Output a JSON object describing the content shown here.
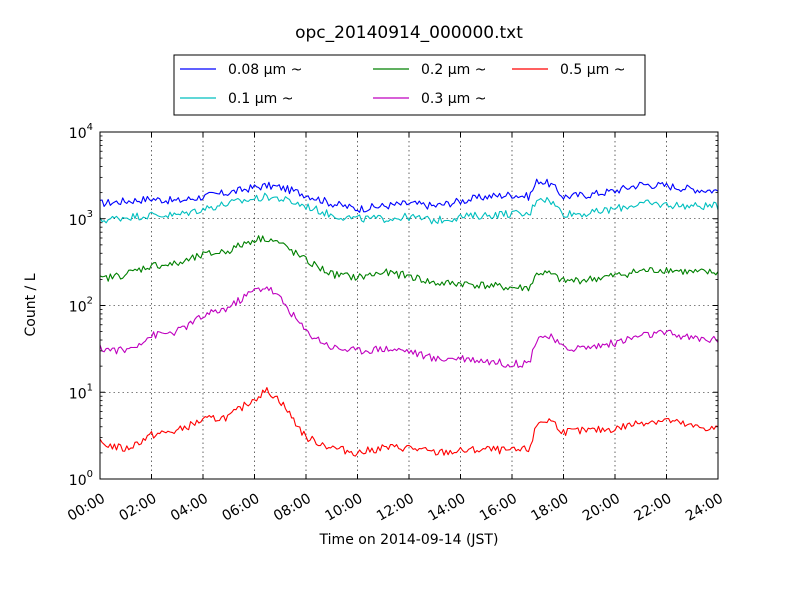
{
  "chart_data": {
    "type": "line",
    "title": "opc_20140914_000000.txt",
    "xlabel": "Time on 2014-09-14 (JST)",
    "ylabel": "Count / L",
    "yscale": "log",
    "ylim": [
      1,
      10000
    ],
    "xlim": [
      "00:00",
      "24:00"
    ],
    "grid": true,
    "legend_position": "top",
    "x_ticks": [
      "00:00",
      "02:00",
      "04:00",
      "06:00",
      "08:00",
      "10:00",
      "12:00",
      "14:00",
      "16:00",
      "18:00",
      "20:00",
      "22:00",
      "24:00"
    ],
    "y_ticks": [
      {
        "base": "10",
        "exp": "0"
      },
      {
        "base": "10",
        "exp": "1"
      },
      {
        "base": "10",
        "exp": "2"
      },
      {
        "base": "10",
        "exp": "3"
      },
      {
        "base": "10",
        "exp": "4"
      }
    ],
    "x": [
      "00:00",
      "01:00",
      "02:00",
      "03:00",
      "04:00",
      "05:00",
      "06:00",
      "06:30",
      "07:00",
      "08:00",
      "09:00",
      "10:00",
      "11:00",
      "12:00",
      "13:00",
      "14:00",
      "15:00",
      "16:00",
      "16:40",
      "17:00",
      "17:30",
      "18:00",
      "19:00",
      "20:00",
      "21:00",
      "22:00",
      "23:00",
      "24:00"
    ],
    "series": [
      {
        "name": "0.08 μm ~",
        "color": "#0000ff",
        "values": [
          1500,
          1600,
          1700,
          1600,
          1800,
          2000,
          2300,
          2400,
          2300,
          1900,
          1500,
          1300,
          1400,
          1500,
          1400,
          1600,
          1800,
          1900,
          1800,
          2800,
          2500,
          1800,
          1900,
          2100,
          2500,
          2400,
          2200,
          2100
        ]
      },
      {
        "name": "0.1 μm ~",
        "color": "#00bfbf",
        "values": [
          950,
          1050,
          1100,
          1100,
          1300,
          1500,
          1700,
          1800,
          1700,
          1400,
          1100,
          1000,
          1000,
          1050,
          950,
          1050,
          1100,
          1150,
          1100,
          1800,
          1600,
          1150,
          1150,
          1300,
          1500,
          1450,
          1400,
          1400
        ]
      },
      {
        "name": "0.2 μm ~",
        "color": "#008000",
        "values": [
          200,
          230,
          290,
          300,
          380,
          430,
          580,
          600,
          520,
          330,
          230,
          210,
          240,
          220,
          180,
          180,
          170,
          160,
          160,
          240,
          230,
          190,
          200,
          220,
          250,
          260,
          240,
          240
        ]
      },
      {
        "name": "0.3 μm ~",
        "color": "#bf00bf",
        "values": [
          32,
          30,
          45,
          50,
          75,
          95,
          150,
          165,
          120,
          50,
          33,
          30,
          32,
          30,
          24,
          25,
          23,
          21,
          22,
          45,
          43,
          32,
          33,
          37,
          45,
          48,
          42,
          40
        ]
      },
      {
        "name": "0.5 μm ~",
        "color": "#ff0000",
        "values": [
          2.6,
          2.2,
          3.2,
          3.6,
          4.8,
          5.2,
          8.5,
          10.5,
          8.0,
          3.0,
          2.3,
          2.0,
          2.3,
          2.3,
          2.0,
          2.1,
          2.2,
          2.1,
          2.2,
          4.5,
          4.8,
          3.5,
          3.6,
          3.8,
          4.5,
          4.8,
          4.0,
          3.8
        ]
      }
    ]
  }
}
